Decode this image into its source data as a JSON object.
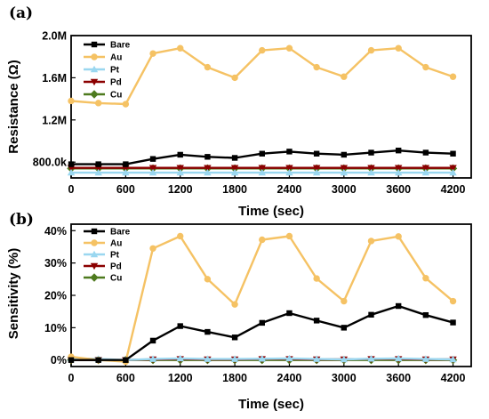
{
  "chart_data": [
    {
      "panel_label": "(a)",
      "type": "line",
      "xlabel": "Time (sec)",
      "ylabel": "Resistance (Ω)",
      "xlim": [
        0,
        4400
      ],
      "ylim": [
        650000,
        2000000
      ],
      "xticks": [
        0,
        600,
        1200,
        1800,
        2400,
        3000,
        3600,
        4200
      ],
      "xtick_labels": [
        "0",
        "600",
        "1200",
        "1800",
        "2400",
        "3000",
        "3600",
        "4200"
      ],
      "yticks": [
        800000,
        1200000,
        1600000,
        2000000
      ],
      "ytick_labels": [
        "800.0k",
        "1.2M",
        "1.6M",
        "2.0M"
      ],
      "legend_position": "top-left",
      "series": [
        {
          "name": "Bare",
          "color": "#000000",
          "marker": "square",
          "x": [
            0,
            300,
            600,
            900,
            1200,
            1500,
            1800,
            2100,
            2400,
            2700,
            3000,
            3300,
            3600,
            3900,
            4200
          ],
          "y": [
            780000,
            780000,
            780000,
            830000,
            870000,
            850000,
            840000,
            880000,
            900000,
            880000,
            870000,
            890000,
            910000,
            890000,
            880000
          ]
        },
        {
          "name": "Au",
          "color": "#F5C264",
          "marker": "circle",
          "x": [
            0,
            300,
            600,
            900,
            1200,
            1500,
            1800,
            2100,
            2400,
            2700,
            3000,
            3300,
            3600,
            3900,
            4200
          ],
          "y": [
            1380000,
            1360000,
            1350000,
            1830000,
            1880000,
            1700000,
            1600000,
            1860000,
            1880000,
            1700000,
            1610000,
            1860000,
            1880000,
            1700000,
            1610000
          ]
        },
        {
          "name": "Pt",
          "color": "#9AD7F0",
          "marker": "triangle-up",
          "x": [
            0,
            300,
            600,
            900,
            1200,
            1500,
            1800,
            2100,
            2400,
            2700,
            3000,
            3300,
            3600,
            3900,
            4200
          ],
          "y": [
            700000,
            700000,
            700000,
            700000,
            700000,
            700000,
            700000,
            700000,
            700000,
            700000,
            700000,
            700000,
            700000,
            700000,
            700000
          ]
        },
        {
          "name": "Pd",
          "color": "#8B0000",
          "marker": "triangle-down",
          "x": [
            0,
            300,
            600,
            900,
            1200,
            1500,
            1800,
            2100,
            2400,
            2700,
            3000,
            3300,
            3600,
            3900,
            4200
          ],
          "y": [
            745000,
            745000,
            745000,
            745000,
            745000,
            745000,
            745000,
            745000,
            745000,
            745000,
            745000,
            745000,
            745000,
            745000,
            745000
          ]
        },
        {
          "name": "Cu",
          "color": "#4E7A1E",
          "marker": "diamond",
          "x": [
            0,
            300,
            600,
            900,
            1200,
            1500,
            1800,
            2100,
            2400,
            2700,
            3000,
            3300,
            3600,
            3900,
            4200
          ],
          "y": [
            740000,
            740000,
            740000,
            740000,
            740000,
            740000,
            740000,
            740000,
            740000,
            740000,
            740000,
            740000,
            740000,
            740000,
            740000
          ]
        }
      ]
    },
    {
      "panel_label": "(b)",
      "type": "line",
      "xlabel": "Time (sec)",
      "ylabel": "Sensitivity (%)",
      "xlim": [
        0,
        4400
      ],
      "ylim": [
        -2,
        42
      ],
      "xticks": [
        0,
        600,
        1200,
        1800,
        2400,
        3000,
        3600,
        4200
      ],
      "xtick_labels": [
        "0",
        "600",
        "1200",
        "1800",
        "2400",
        "3000",
        "3600",
        "4200"
      ],
      "yticks": [
        0,
        10,
        20,
        30,
        40
      ],
      "ytick_labels": [
        "0%",
        "10%",
        "20%",
        "30%",
        "40%"
      ],
      "legend_position": "top-left",
      "series": [
        {
          "name": "Bare",
          "color": "#000000",
          "marker": "square",
          "x": [
            0,
            300,
            600,
            900,
            1200,
            1500,
            1800,
            2100,
            2400,
            2700,
            3000,
            3300,
            3600,
            3900,
            4200
          ],
          "y": [
            0,
            0,
            0,
            6,
            10.5,
            8.7,
            7,
            11.5,
            14.5,
            12.2,
            10,
            14,
            16.7,
            13.9,
            11.6
          ]
        },
        {
          "name": "Au",
          "color": "#F5C264",
          "marker": "circle",
          "x": [
            0,
            300,
            600,
            900,
            1200,
            1500,
            1800,
            2100,
            2400,
            2700,
            3000,
            3300,
            3600,
            3900,
            4200
          ],
          "y": [
            1,
            0,
            -0.5,
            34.5,
            38.3,
            25,
            17.2,
            37.2,
            38.3,
            25.2,
            18.2,
            36.8,
            38.2,
            25.3,
            18.2
          ]
        },
        {
          "name": "Pt",
          "color": "#9AD7F0",
          "marker": "triangle-up",
          "x": [
            0,
            300,
            600,
            900,
            1200,
            1500,
            1800,
            2100,
            2400,
            2700,
            3000,
            3300,
            3600,
            3900,
            4200
          ],
          "y": [
            0.5,
            0.3,
            0,
            0.3,
            0.5,
            0.3,
            0.3,
            0.4,
            0.5,
            0.3,
            0.2,
            0.4,
            0.5,
            0.3,
            0.2
          ]
        },
        {
          "name": "Pd",
          "color": "#8B0000",
          "marker": "triangle-down",
          "x": [
            0,
            300,
            600,
            900,
            1200,
            1500,
            1800,
            2100,
            2400,
            2700,
            3000,
            3300,
            3600,
            3900,
            4200
          ],
          "y": [
            0,
            0,
            0,
            0.2,
            0.3,
            0.2,
            0.2,
            0.3,
            0.3,
            0.2,
            0.2,
            0.3,
            0.3,
            0.2,
            0.2
          ]
        },
        {
          "name": "Cu",
          "color": "#4E7A1E",
          "marker": "diamond",
          "x": [
            0,
            300,
            600,
            900,
            1200,
            1500,
            1800,
            2100,
            2400,
            2700,
            3000,
            3300,
            3600,
            3900,
            4200
          ],
          "y": [
            0,
            0,
            0,
            0,
            0,
            0,
            0,
            0,
            0,
            0,
            0,
            0,
            0,
            0,
            0
          ]
        }
      ]
    }
  ]
}
